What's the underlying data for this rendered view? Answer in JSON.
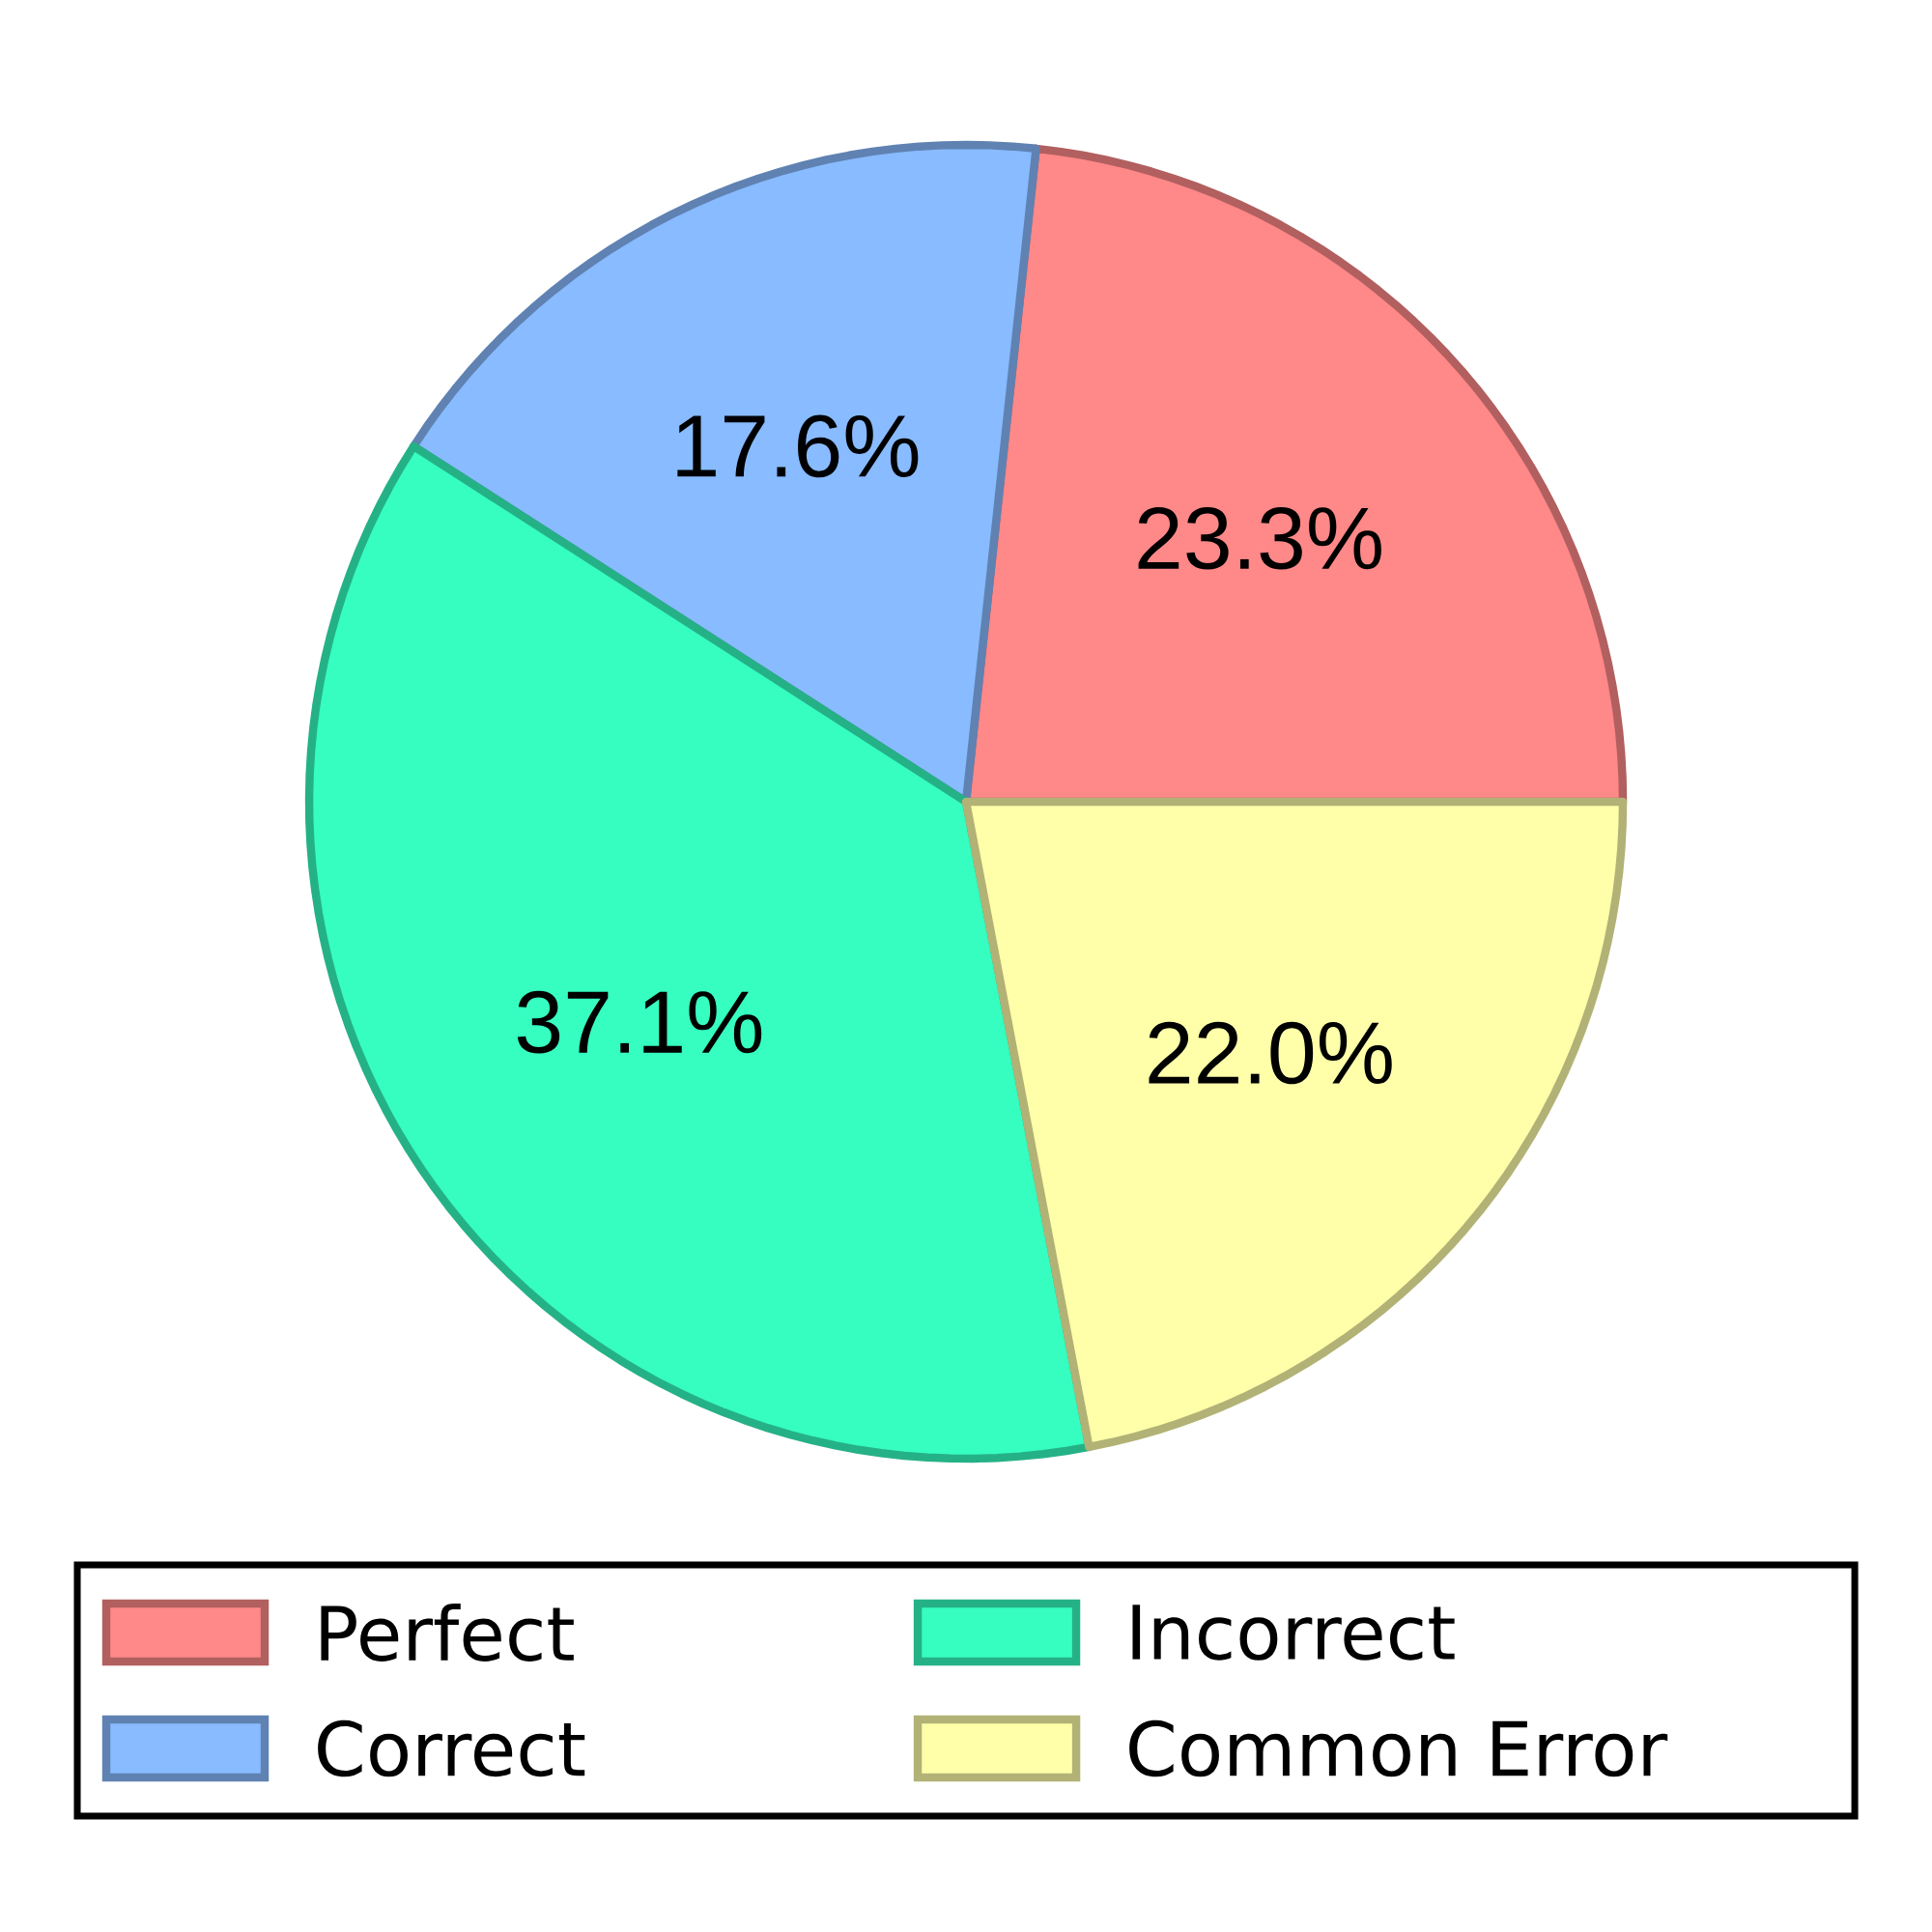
{
  "chart_data": {
    "type": "pie",
    "categories": [
      "Perfect",
      "Correct",
      "Incorrect",
      "Common Error"
    ],
    "values": [
      23.3,
      17.6,
      37.1,
      22.0
    ],
    "value_labels": [
      "23.3%",
      "17.6%",
      "37.1%",
      "22.0%"
    ],
    "colors": [
      "#ff8888",
      "#88bbff",
      "#36fdc0",
      "#ffffaa"
    ],
    "legend": "bottom"
  }
}
